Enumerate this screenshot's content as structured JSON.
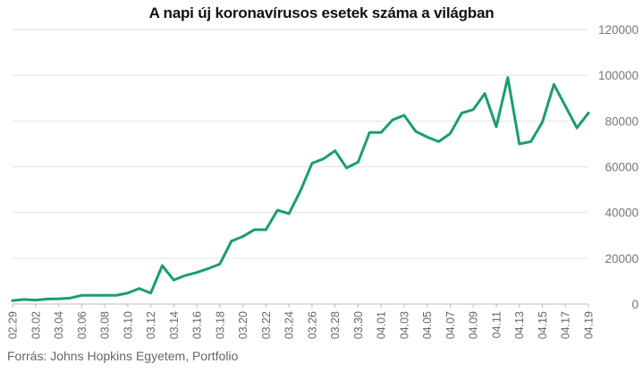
{
  "chart_data": {
    "type": "line",
    "title": "A napi új koronavírusos esetek száma a világban",
    "source": "Forrás: Johns Hopkins Egyetem, Portfolio",
    "ylim": [
      0,
      120000
    ],
    "y_ticks": [
      0,
      20000,
      40000,
      60000,
      80000,
      100000,
      120000
    ],
    "y_tick_labels": [
      "0",
      "20000",
      "40000",
      "60000",
      "80000",
      "100000",
      "120000"
    ],
    "x_tick_labels": [
      "02.29",
      "03.02",
      "03.04",
      "03.06",
      "03.08",
      "03.10",
      "03.12",
      "03.14",
      "03.16",
      "03.18",
      "03.20",
      "03.22",
      "03.24",
      "03.26",
      "03.28",
      "03.30",
      "04.01",
      "04.03",
      "04.05",
      "04.07",
      "04.09",
      "04.11",
      "04.13",
      "04.15",
      "04.17",
      "04.19"
    ],
    "grid": true,
    "y_axis_side": "right",
    "line_color": "#1a9e6e",
    "series": [
      {
        "x": [
          "02.29",
          "03.01",
          "03.02",
          "03.03",
          "03.04",
          "03.05",
          "03.06",
          "03.07",
          "03.08",
          "03.09",
          "03.10",
          "03.11",
          "03.12",
          "03.13",
          "03.14",
          "03.15",
          "03.16",
          "03.17",
          "03.18",
          "03.19",
          "03.20",
          "03.21",
          "03.22",
          "03.23",
          "03.24",
          "03.25",
          "03.26",
          "03.27",
          "03.28",
          "03.29",
          "03.30",
          "03.31",
          "04.01",
          "04.02",
          "04.03",
          "04.04",
          "04.05",
          "04.06",
          "04.07",
          "04.08",
          "04.09",
          "04.10",
          "04.11",
          "04.12",
          "04.13",
          "04.14",
          "04.15",
          "04.16",
          "04.17",
          "04.18",
          "04.19"
        ],
        "values": [
          1500,
          2000,
          1700,
          2200,
          2300,
          2600,
          3800,
          3800,
          3800,
          3800,
          4800,
          6800,
          4800,
          16800,
          10500,
          12500,
          13800,
          15500,
          17500,
          27500,
          29500,
          32500,
          32500,
          41000,
          39500,
          49500,
          61500,
          63500,
          67000,
          59500,
          62000,
          75000,
          75000,
          80500,
          82500,
          75500,
          73000,
          71000,
          74500,
          83500,
          85000,
          92000,
          77500,
          99000,
          70000,
          71000,
          79500,
          96000,
          86500,
          77000,
          83500
        ]
      }
    ]
  }
}
